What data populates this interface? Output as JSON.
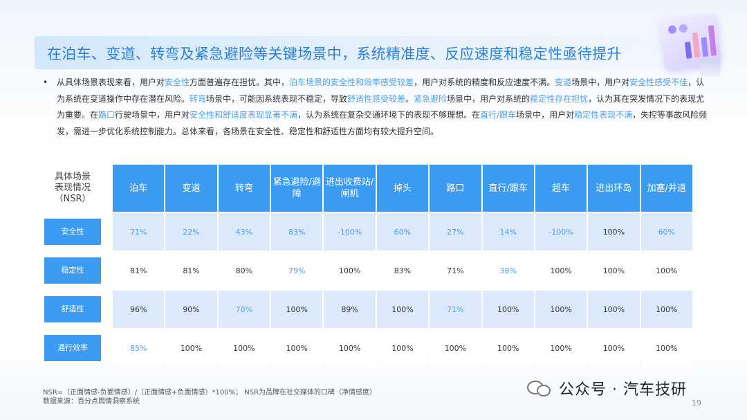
{
  "title": "在泊车、变道、转弯及紧急避险等关键场景中，系统精准度、反应速度和稳定性亟待提升",
  "bullet": "•",
  "paragraph": [
    {
      "t": "从具体场景表现来看，用户对",
      "h": false
    },
    {
      "t": "安全性",
      "h": true
    },
    {
      "t": "方面普遍存在担忧。其中，",
      "h": false
    },
    {
      "t": "泊车场景的安全性和效率感受较差",
      "h": true
    },
    {
      "t": "，用户对系统的精度和反应速度不满。",
      "h": false
    },
    {
      "t": "变道",
      "h": true
    },
    {
      "t": "场景中，用户对",
      "h": false
    },
    {
      "t": "安全性感受不佳",
      "h": true
    },
    {
      "t": "，认为系统在变道操作中存在潜在风险。",
      "h": false
    },
    {
      "t": "转弯",
      "h": true
    },
    {
      "t": "场景中，可能因系统表现不稳定，导致",
      "h": false
    },
    {
      "t": "舒适性感受较差",
      "h": true
    },
    {
      "t": "。",
      "h": false
    },
    {
      "t": "紧急避险",
      "h": true
    },
    {
      "t": "场景中，用户对系统的",
      "h": false
    },
    {
      "t": "稳定性存在担忧",
      "h": true
    },
    {
      "t": "，认为其在突发情况下的表现尤为重要。在",
      "h": false
    },
    {
      "t": "路口",
      "h": true
    },
    {
      "t": "行驶场景中，用户对",
      "h": false
    },
    {
      "t": "安全性和舒适度表现显著不满",
      "h": true
    },
    {
      "t": "，认为系统在复杂交通环境下的表现不够理想。在",
      "h": false
    },
    {
      "t": "直行/跟车",
      "h": true
    },
    {
      "t": "场景中，用户对",
      "h": false
    },
    {
      "t": "稳定性表现不满",
      "h": true
    },
    {
      "t": "，失控等事故风险频发，需进一步优化系统控制能力。总体来看，各场景在安全性、稳定性和舒适性方面均有较大提升空间。",
      "h": false
    }
  ],
  "table": {
    "corner": [
      "具体场景",
      "表现情况",
      "（NSR）"
    ],
    "columns": [
      "泊车",
      "变道",
      "转弯",
      "紧急避险/避障",
      "进出收费站/闸机",
      "掉头",
      "路口",
      "直行/跟车",
      "超车",
      "进出环岛",
      "加塞/并道"
    ],
    "rows": [
      {
        "label": "安全性",
        "values": [
          "71%",
          "22%",
          "43%",
          "83%",
          "-100%",
          "60%",
          "27%",
          "14%",
          "-100%",
          "100%",
          "60%"
        ],
        "highlight": [
          true,
          true,
          true,
          true,
          true,
          true,
          true,
          true,
          true,
          false,
          true
        ]
      },
      {
        "label": "稳定性",
        "values": [
          "81%",
          "81%",
          "80%",
          "79%",
          "100%",
          "83%",
          "71%",
          "38%",
          "100%",
          "100%",
          "100%"
        ],
        "highlight": [
          false,
          false,
          false,
          true,
          false,
          false,
          false,
          true,
          false,
          false,
          false
        ]
      },
      {
        "label": "舒适性",
        "values": [
          "96%",
          "90%",
          "70%",
          "100%",
          "89%",
          "100%",
          "71%",
          "100%",
          "100%",
          "100%",
          "100%"
        ],
        "highlight": [
          false,
          false,
          true,
          false,
          false,
          false,
          true,
          false,
          false,
          false,
          false
        ]
      },
      {
        "label": "通行效率",
        "values": [
          "85%",
          "100%",
          "100%",
          "100%",
          "100%",
          "100%",
          "100%",
          "100%",
          "100%",
          "100%",
          "100%"
        ],
        "highlight": [
          true,
          false,
          false,
          false,
          false,
          false,
          false,
          false,
          false,
          false,
          false
        ]
      }
    ]
  },
  "notes": {
    "line1": "NSR=（正面情感-负面情感）/（正面情感+负面情感）*100%；  NSR为品牌在社交媒体的口碑（净情感度）",
    "line2": "数据来源：百分点舆情洞察系统"
  },
  "wechat_label": "公众号 · 汽车技研",
  "page_number": "19",
  "colors": {
    "accent": "#3a9bf0",
    "title": "#2a7fd9",
    "highlight": "#4d9eec",
    "row_band": "#dce9fa"
  }
}
